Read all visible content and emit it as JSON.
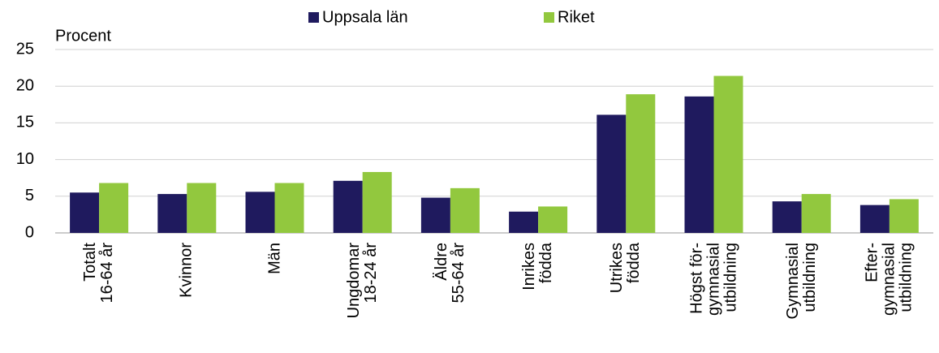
{
  "chart_data": {
    "type": "bar",
    "y_label": "Procent",
    "categories": [
      "Totalt\n16-64 år",
      "Kvinnor",
      "Män",
      "Ungdomar\n18-24 år",
      "Äldre\n55-64 år",
      "Inrikes\nfödda",
      "Utrikes\nfödda",
      "Högst för-\ngymnasial\nutbildning",
      "Gymnasial\nutbildning",
      "Efter-\ngymnasial\nutbildning"
    ],
    "series": [
      {
        "name": "Uppsala län",
        "color": "#1f1a5e",
        "values": [
          5.5,
          5.3,
          5.6,
          7.1,
          4.8,
          2.9,
          16.1,
          18.6,
          4.3,
          3.8
        ]
      },
      {
        "name": "Riket",
        "color": "#92c83e",
        "values": [
          6.8,
          6.8,
          6.8,
          8.3,
          6.1,
          3.6,
          18.9,
          21.4,
          5.3,
          4.6
        ]
      }
    ],
    "ylim": [
      0,
      25
    ],
    "yticks": [
      0,
      5,
      10,
      15,
      20,
      25
    ],
    "grid": true,
    "legend": "top"
  }
}
